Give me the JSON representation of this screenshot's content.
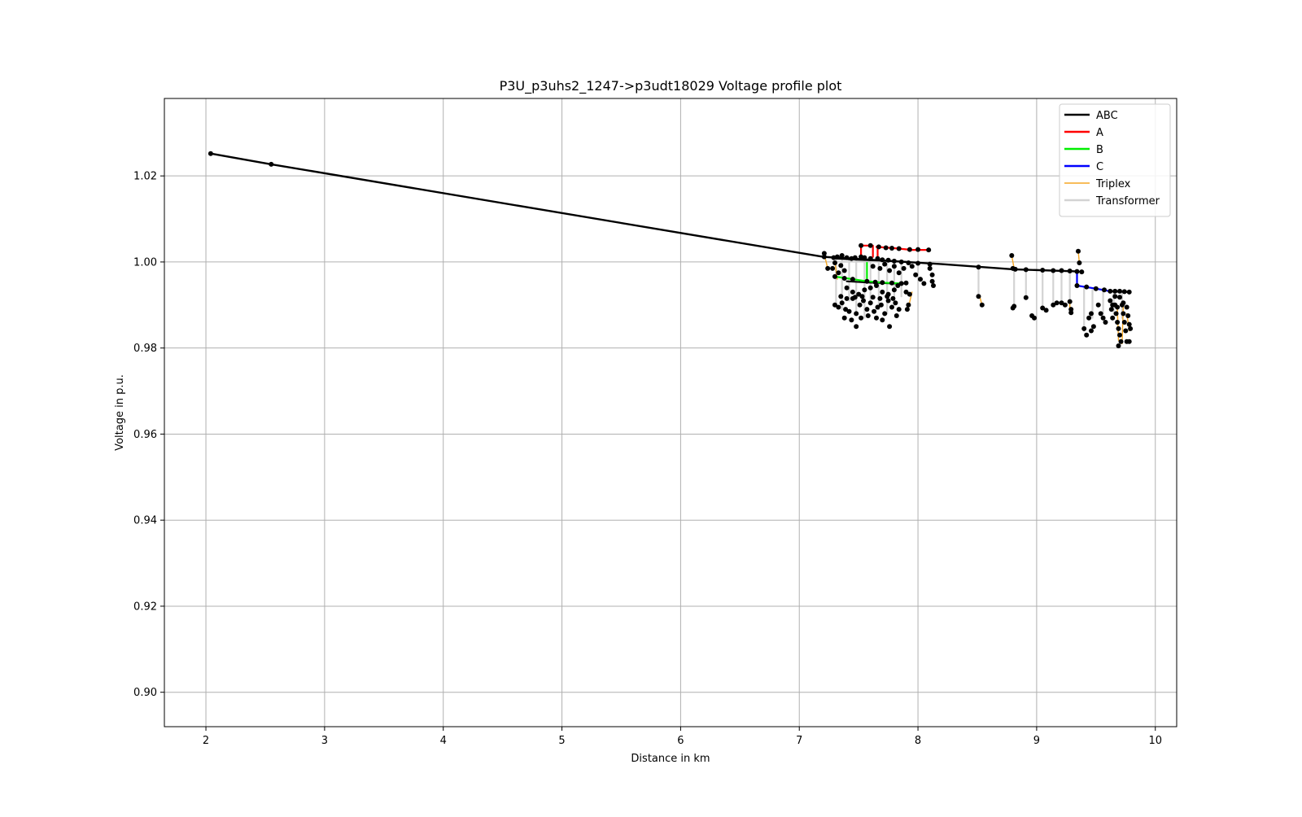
{
  "chart_data": {
    "type": "line",
    "title": "P3U_p3uhs2_1247->p3udt18029 Voltage profile plot",
    "xlabel": "Distance in km",
    "ylabel": "Voltage in p.u.",
    "xlim": [
      1.65,
      10.18
    ],
    "ylim": [
      0.892,
      1.038
    ],
    "xticks": [
      2,
      3,
      4,
      5,
      6,
      7,
      8,
      9,
      10
    ],
    "yticks": [
      0.9,
      0.92,
      0.94,
      0.96,
      0.98,
      1.0,
      1.02
    ],
    "xtick_labels": [
      "2",
      "3",
      "4",
      "5",
      "6",
      "7",
      "8",
      "9",
      "10"
    ],
    "ytick_labels": [
      "0.90",
      "0.92",
      "0.94",
      "0.96",
      "0.98",
      "1.00",
      "1.02"
    ],
    "grid": true,
    "legend_position": "top-right",
    "legend": [
      {
        "name": "ABC",
        "color": "#000000",
        "width": 2.5
      },
      {
        "name": "A",
        "color": "#ff0000",
        "width": 2.5
      },
      {
        "name": "B",
        "color": "#00ee00",
        "width": 2.5
      },
      {
        "name": "C",
        "color": "#0000ff",
        "width": 2.5
      },
      {
        "name": "Triplex",
        "color": "#f5a623",
        "width": 1.5
      },
      {
        "name": "Transformer",
        "color": "#d3d3d3",
        "width": 2.5
      }
    ],
    "series": [
      {
        "name": "ABC",
        "color": "#000000",
        "segments": [
          [
            [
              2.04,
              1.0252
            ],
            [
              2.55,
              1.0227
            ],
            [
              7.2,
              1.0012
            ],
            [
              8.2,
              0.9995
            ],
            [
              8.8,
              0.9983
            ],
            [
              9.35,
              0.9978
            ]
          ]
        ]
      },
      {
        "name": "A",
        "color": "#ff0000",
        "segments": [
          [
            [
              7.52,
              1.0012
            ],
            [
              7.52,
              1.0038
            ],
            [
              7.62,
              1.0038
            ],
            [
              7.62,
              1.0012
            ]
          ],
          [
            [
              7.65,
              1.0035
            ],
            [
              7.8,
              1.0032
            ],
            [
              7.95,
              1.0028
            ],
            [
              8.1,
              1.0028
            ]
          ],
          [
            [
              7.66,
              1.0035
            ],
            [
              7.66,
              1.001
            ]
          ]
        ]
      },
      {
        "name": "B",
        "color": "#00ee00",
        "segments": [
          [
            [
              7.3,
              0.9966
            ],
            [
              7.45,
              0.996
            ],
            [
              7.57,
              0.9955
            ],
            [
              7.57,
              0.9998
            ]
          ],
          [
            [
              7.57,
              0.9955
            ],
            [
              7.7,
              0.9952
            ],
            [
              7.85,
              0.995
            ]
          ]
        ]
      },
      {
        "name": "C",
        "color": "#0000ff",
        "segments": [
          [
            [
              9.34,
              0.9978
            ],
            [
              9.34,
              0.9945
            ],
            [
              9.5,
              0.9938
            ],
            [
              9.62,
              0.9932
            ]
          ]
        ]
      },
      {
        "name": "ABC-lateral",
        "color": "#000000",
        "segments": [
          [
            [
              7.3,
              1.0008
            ],
            [
              7.5,
              1.0005
            ],
            [
              7.7,
              1.0003
            ],
            [
              7.9,
              1.0
            ]
          ],
          [
            [
              7.4,
              0.9955
            ],
            [
              7.6,
              0.9952
            ],
            [
              7.8,
              0.995
            ],
            [
              7.9,
              0.995
            ]
          ],
          [
            [
              9.62,
              0.9932
            ],
            [
              9.78,
              0.993
            ]
          ]
        ]
      },
      {
        "name": "Transformer",
        "color": "#d3d3d3",
        "segments": [
          [
            [
              7.31,
              1.0005
            ],
            [
              7.31,
              0.99
            ]
          ],
          [
            [
              7.36,
              1.0005
            ],
            [
              7.36,
              0.989
            ]
          ],
          [
            [
              7.42,
              1.0005
            ],
            [
              7.42,
              0.991
            ]
          ],
          [
            [
              7.48,
              1.0005
            ],
            [
              7.48,
              0.988
            ]
          ],
          [
            [
              7.55,
              1.0005
            ],
            [
              7.55,
              0.987
            ]
          ],
          [
            [
              7.6,
              1.0003
            ],
            [
              7.6,
              0.99
            ]
          ],
          [
            [
              7.67,
              1.0003
            ],
            [
              7.67,
              0.989
            ]
          ],
          [
            [
              7.74,
              1.0003
            ],
            [
              7.74,
              0.988
            ]
          ],
          [
            [
              7.8,
              1.0002
            ],
            [
              7.8,
              0.99
            ]
          ],
          [
            [
              7.86,
              1.0001
            ],
            [
              7.86,
              0.992
            ]
          ],
          [
            [
              8.51,
              0.9988
            ],
            [
              8.51,
              0.992
            ]
          ],
          [
            [
              8.81,
              0.9983
            ],
            [
              8.81,
              0.9895
            ]
          ],
          [
            [
              8.91,
              0.9982
            ],
            [
              8.91,
              0.9915
            ]
          ],
          [
            [
              9.05,
              0.9981
            ],
            [
              9.05,
              0.989
            ]
          ],
          [
            [
              9.14,
              0.998
            ],
            [
              9.14,
              0.99
            ]
          ],
          [
            [
              9.21,
              0.998
            ],
            [
              9.21,
              0.9905
            ]
          ],
          [
            [
              9.28,
              0.9979
            ],
            [
              9.28,
              0.9905
            ]
          ],
          [
            [
              9.4,
              0.9942
            ],
            [
              9.4,
              0.984
            ]
          ],
          [
            [
              9.47,
              0.9938
            ],
            [
              9.47,
              0.987
            ]
          ],
          [
            [
              9.56,
              0.9935
            ],
            [
              9.56,
              0.988
            ]
          ],
          [
            [
              9.65,
              0.9932
            ],
            [
              9.65,
              0.988
            ]
          ],
          [
            [
              9.72,
              0.9931
            ],
            [
              9.72,
              0.987
            ]
          ]
        ]
      },
      {
        "name": "Triplex",
        "color": "#f5a623",
        "segments": [
          [
            [
              7.21,
              1.0018
            ],
            [
              7.24,
              0.9985
            ]
          ],
          [
            [
              7.3,
              1.0
            ],
            [
              7.32,
              0.996
            ]
          ],
          [
            [
              8.79,
              1.0015
            ],
            [
              8.81,
              0.9985
            ]
          ],
          [
            [
              9.35,
              1.0025
            ],
            [
              9.36,
              0.9998
            ]
          ],
          [
            [
              7.95,
              0.993
            ],
            [
              7.92,
              0.9895
            ]
          ],
          [
            [
              9.73,
              0.99
            ],
            [
              9.72,
              0.981
            ]
          ],
          [
            [
              9.68,
              0.989
            ],
            [
              9.69,
              0.9818
            ]
          ],
          [
            [
              9.76,
              0.988
            ],
            [
              9.78,
              0.984
            ]
          ],
          [
            [
              8.52,
              0.992
            ],
            [
              8.54,
              0.99
            ]
          ],
          [
            [
              9.28,
              0.9905
            ],
            [
              9.28,
              0.9885
            ]
          ]
        ]
      }
    ],
    "nodes": {
      "color": "#000000",
      "radius": 3.0,
      "points": [
        [
          2.04,
          1.0252
        ],
        [
          2.55,
          1.0227
        ],
        [
          7.21,
          1.002
        ],
        [
          7.21,
          1.0012
        ],
        [
          7.24,
          0.9985
        ],
        [
          7.29,
          1.001
        ],
        [
          7.32,
          1.0012
        ],
        [
          7.36,
          1.0015
        ],
        [
          7.4,
          1.001
        ],
        [
          7.44,
          1.0008
        ],
        [
          7.47,
          1.001
        ],
        [
          7.52,
          1.0012
        ],
        [
          7.55,
          1.001
        ],
        [
          7.6,
          1.0008
        ],
        [
          7.66,
          1.0008
        ],
        [
          7.7,
          1.0005
        ],
        [
          7.75,
          1.0004
        ],
        [
          7.8,
          1.0002
        ],
        [
          7.86,
          1.0
        ],
        [
          7.92,
          0.9998
        ],
        [
          8.0,
          0.9997
        ],
        [
          8.1,
          0.9995
        ],
        [
          7.52,
          1.0038
        ],
        [
          7.6,
          1.0038
        ],
        [
          7.67,
          1.0035
        ],
        [
          7.73,
          1.0033
        ],
        [
          7.78,
          1.0032
        ],
        [
          7.84,
          1.0031
        ],
        [
          7.93,
          1.0029
        ],
        [
          8.0,
          1.0029
        ],
        [
          8.09,
          1.0028
        ],
        [
          7.3,
          0.9966
        ],
        [
          7.38,
          0.9962
        ],
        [
          7.45,
          0.996
        ],
        [
          7.57,
          0.9955
        ],
        [
          7.64,
          0.9953
        ],
        [
          7.7,
          0.9952
        ],
        [
          7.78,
          0.9951
        ],
        [
          7.86,
          0.995
        ],
        [
          7.9,
          0.9951
        ],
        [
          7.3,
          0.9998
        ],
        [
          7.35,
          0.9992
        ],
        [
          7.38,
          0.998
        ],
        [
          7.33,
          0.9975
        ],
        [
          7.28,
          0.9985
        ],
        [
          7.4,
          0.994
        ],
        [
          7.45,
          0.993
        ],
        [
          7.5,
          0.9925
        ],
        [
          7.55,
          0.9935
        ],
        [
          7.6,
          0.994
        ],
        [
          7.65,
          0.9945
        ],
        [
          7.7,
          0.993
        ],
        [
          7.75,
          0.9925
        ],
        [
          7.8,
          0.9935
        ],
        [
          7.83,
          0.9945
        ],
        [
          7.3,
          0.99
        ],
        [
          7.33,
          0.9895
        ],
        [
          7.36,
          0.9905
        ],
        [
          7.39,
          0.989
        ],
        [
          7.42,
          0.9885
        ],
        [
          7.45,
          0.9915
        ],
        [
          7.48,
          0.988
        ],
        [
          7.51,
          0.99
        ],
        [
          7.54,
          0.991
        ],
        [
          7.57,
          0.989
        ],
        [
          7.6,
          0.9905
        ],
        [
          7.63,
          0.9885
        ],
        [
          7.66,
          0.9895
        ],
        [
          7.69,
          0.99
        ],
        [
          7.72,
          0.988
        ],
        [
          7.75,
          0.991
        ],
        [
          7.78,
          0.9895
        ],
        [
          7.81,
          0.9905
        ],
        [
          7.84,
          0.989
        ],
        [
          7.35,
          0.992
        ],
        [
          7.4,
          0.9915
        ],
        [
          7.47,
          0.9918
        ],
        [
          7.53,
          0.992
        ],
        [
          7.62,
          0.9918
        ],
        [
          7.68,
          0.9915
        ],
        [
          7.74,
          0.992
        ],
        [
          7.79,
          0.9915
        ],
        [
          7.38,
          0.987
        ],
        [
          7.44,
          0.9865
        ],
        [
          7.48,
          0.985
        ],
        [
          7.52,
          0.987
        ],
        [
          7.58,
          0.9875
        ],
        [
          7.65,
          0.987
        ],
        [
          7.7,
          0.9865
        ],
        [
          7.76,
          0.985
        ],
        [
          7.82,
          0.9875
        ],
        [
          7.62,
          0.999
        ],
        [
          7.68,
          0.9985
        ],
        [
          7.72,
          0.9995
        ],
        [
          7.76,
          0.998
        ],
        [
          7.8,
          0.999
        ],
        [
          7.84,
          0.9975
        ],
        [
          7.88,
          0.9985
        ],
        [
          7.95,
          0.999
        ],
        [
          7.98,
          0.997
        ],
        [
          8.02,
          0.996
        ],
        [
          8.05,
          0.995
        ],
        [
          8.1,
          0.9985
        ],
        [
          8.12,
          0.997
        ],
        [
          8.12,
          0.9955
        ],
        [
          8.13,
          0.9945
        ],
        [
          7.9,
          0.993
        ],
        [
          7.93,
          0.9925
        ],
        [
          7.92,
          0.99
        ],
        [
          7.91,
          0.989
        ],
        [
          8.51,
          0.9988
        ],
        [
          8.51,
          0.992
        ],
        [
          8.54,
          0.99
        ],
        [
          8.79,
          1.0015
        ],
        [
          8.8,
          0.9985
        ],
        [
          8.82,
          0.9983
        ],
        [
          8.81,
          0.9897
        ],
        [
          8.8,
          0.9893
        ],
        [
          8.91,
          0.9982
        ],
        [
          8.91,
          0.9917
        ],
        [
          8.96,
          0.9875
        ],
        [
          8.98,
          0.987
        ],
        [
          9.05,
          0.9981
        ],
        [
          9.05,
          0.9893
        ],
        [
          9.08,
          0.9888
        ],
        [
          9.14,
          0.998
        ],
        [
          9.14,
          0.99
        ],
        [
          9.17,
          0.9905
        ],
        [
          9.21,
          0.998
        ],
        [
          9.21,
          0.9905
        ],
        [
          9.24,
          0.99
        ],
        [
          9.28,
          0.9979
        ],
        [
          9.28,
          0.9908
        ],
        [
          9.29,
          0.989
        ],
        [
          9.29,
          0.9882
        ],
        [
          9.35,
          1.0025
        ],
        [
          9.36,
          0.9998
        ],
        [
          9.34,
          0.9978
        ],
        [
          9.38,
          0.9977
        ],
        [
          9.34,
          0.9945
        ],
        [
          9.42,
          0.9942
        ],
        [
          9.5,
          0.9938
        ],
        [
          9.57,
          0.9935
        ],
        [
          9.62,
          0.9932
        ],
        [
          9.66,
          0.9932
        ],
        [
          9.7,
          0.9932
        ],
        [
          9.74,
          0.9931
        ],
        [
          9.78,
          0.993
        ],
        [
          9.4,
          0.9845
        ],
        [
          9.42,
          0.983
        ],
        [
          9.44,
          0.987
        ],
        [
          9.46,
          0.988
        ],
        [
          9.48,
          0.985
        ],
        [
          9.46,
          0.984
        ],
        [
          9.52,
          0.99
        ],
        [
          9.54,
          0.988
        ],
        [
          9.56,
          0.987
        ],
        [
          9.58,
          0.986
        ],
        [
          9.62,
          0.991
        ],
        [
          9.63,
          0.989
        ],
        [
          9.64,
          0.987
        ],
        [
          9.66,
          0.99
        ],
        [
          9.67,
          0.988
        ],
        [
          9.68,
          0.986
        ],
        [
          9.69,
          0.9845
        ],
        [
          9.7,
          0.983
        ],
        [
          9.71,
          0.9815
        ],
        [
          9.69,
          0.9805
        ],
        [
          9.72,
          0.99
        ],
        [
          9.73,
          0.988
        ],
        [
          9.74,
          0.986
        ],
        [
          9.75,
          0.984
        ],
        [
          9.76,
          0.9895
        ],
        [
          9.77,
          0.9875
        ],
        [
          9.78,
          0.9855
        ],
        [
          9.79,
          0.9845
        ],
        [
          9.76,
          0.9815
        ],
        [
          9.78,
          0.9815
        ],
        [
          9.64,
          0.99
        ],
        [
          9.66,
          0.992
        ],
        [
          9.7,
          0.9918
        ],
        [
          9.73,
          0.9905
        ],
        [
          9.68,
          0.9895
        ]
      ]
    }
  }
}
